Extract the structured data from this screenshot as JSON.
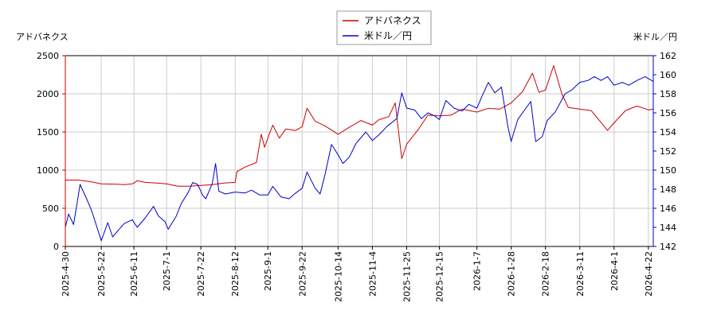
{
  "chart_data": {
    "type": "line",
    "title": "",
    "grid": true,
    "legend_position": "top-center",
    "xlabel": "",
    "x_tick_labels": [
      "2025-4-30",
      "2025-5-22",
      "2025-6-11",
      "2025-7-1",
      "2025-7-22",
      "2025-8-12",
      "2025-9-1",
      "2025-9-22",
      "2025-10-14",
      "2025-11-4",
      "2025-11-25",
      "2025-12-15",
      "2026-1-7",
      "2026-1-28",
      "2026-2-18",
      "2026-3-11",
      "2026-4-1",
      "2026-4-22"
    ],
    "xlim": [
      "2025-04-30",
      "2026-04-25"
    ],
    "y_left": {
      "label": "アドバネクス",
      "ylim": [
        0,
        2500
      ],
      "ticks": [
        "0",
        "500",
        "1000",
        "1500",
        "2000",
        "2500"
      ]
    },
    "y_right": {
      "label": "米ドル／円",
      "ylim": [
        142,
        162
      ],
      "ticks": [
        "142",
        "144",
        "146",
        "148",
        "150",
        "152",
        "154",
        "156",
        "158",
        "160",
        "162"
      ]
    },
    "series": [
      {
        "name": "アドバネクス",
        "axis": "left",
        "color": "#cc0000",
        "points": [
          [
            "2025-04-30",
            870
          ],
          [
            "2025-05-08",
            870
          ],
          [
            "2025-05-15",
            850
          ],
          [
            "2025-05-22",
            820
          ],
          [
            "2025-06-01",
            815
          ],
          [
            "2025-06-05",
            810
          ],
          [
            "2025-06-10",
            820
          ],
          [
            "2025-06-13",
            860
          ],
          [
            "2025-06-18",
            840
          ],
          [
            "2025-06-25",
            830
          ],
          [
            "2025-07-01",
            820
          ],
          [
            "2025-07-08",
            790
          ],
          [
            "2025-07-15",
            790
          ],
          [
            "2025-07-22",
            800
          ],
          [
            "2025-07-29",
            810
          ],
          [
            "2025-08-05",
            830
          ],
          [
            "2025-08-12",
            840
          ],
          [
            "2025-08-13",
            980
          ],
          [
            "2025-08-18",
            1040
          ],
          [
            "2025-08-25",
            1100
          ],
          [
            "2025-08-28",
            1470
          ],
          [
            "2025-08-30",
            1300
          ],
          [
            "2025-09-02",
            1480
          ],
          [
            "2025-09-04",
            1590
          ],
          [
            "2025-09-08",
            1420
          ],
          [
            "2025-09-12",
            1540
          ],
          [
            "2025-09-18",
            1520
          ],
          [
            "2025-09-22",
            1570
          ],
          [
            "2025-09-25",
            1810
          ],
          [
            "2025-09-30",
            1640
          ],
          [
            "2025-10-06",
            1580
          ],
          [
            "2025-10-14",
            1470
          ],
          [
            "2025-10-20",
            1550
          ],
          [
            "2025-10-28",
            1650
          ],
          [
            "2025-11-04",
            1590
          ],
          [
            "2025-11-08",
            1660
          ],
          [
            "2025-11-14",
            1700
          ],
          [
            "2025-11-18",
            1880
          ],
          [
            "2025-11-22",
            1150
          ],
          [
            "2025-11-25",
            1340
          ],
          [
            "2025-12-02",
            1530
          ],
          [
            "2025-12-08",
            1720
          ],
          [
            "2025-12-15",
            1710
          ],
          [
            "2025-12-22",
            1720
          ],
          [
            "2025-12-29",
            1800
          ],
          [
            "2026-01-07",
            1760
          ],
          [
            "2026-01-14",
            1810
          ],
          [
            "2026-01-21",
            1800
          ],
          [
            "2026-01-28",
            1880
          ],
          [
            "2026-02-04",
            2030
          ],
          [
            "2026-02-10",
            2270
          ],
          [
            "2026-02-14",
            2020
          ],
          [
            "2026-02-18",
            2050
          ],
          [
            "2026-02-23",
            2370
          ],
          [
            "2026-02-28",
            2000
          ],
          [
            "2026-03-04",
            1820
          ],
          [
            "2026-03-11",
            1800
          ],
          [
            "2026-03-18",
            1780
          ],
          [
            "2026-03-25",
            1600
          ],
          [
            "2026-03-28",
            1520
          ],
          [
            "2026-04-01",
            1620
          ],
          [
            "2026-04-08",
            1780
          ],
          [
            "2026-04-15",
            1840
          ],
          [
            "2026-04-22",
            1790
          ],
          [
            "2026-04-25",
            1800
          ]
        ]
      },
      {
        "name": "米ドル／円",
        "axis": "right",
        "color": "#0000cc",
        "points": [
          [
            "2025-04-30",
            144.0
          ],
          [
            "2025-05-02",
            145.4
          ],
          [
            "2025-05-05",
            144.3
          ],
          [
            "2025-05-07",
            146.3
          ],
          [
            "2025-05-09",
            148.5
          ],
          [
            "2025-05-13",
            147.0
          ],
          [
            "2025-05-16",
            145.8
          ],
          [
            "2025-05-19",
            144.2
          ],
          [
            "2025-05-22",
            142.6
          ],
          [
            "2025-05-26",
            144.5
          ],
          [
            "2025-05-29",
            143.0
          ],
          [
            "2025-06-02",
            143.8
          ],
          [
            "2025-06-05",
            144.4
          ],
          [
            "2025-06-10",
            144.8
          ],
          [
            "2025-06-13",
            144.0
          ],
          [
            "2025-06-18",
            145.0
          ],
          [
            "2025-06-23",
            146.2
          ],
          [
            "2025-06-26",
            145.2
          ],
          [
            "2025-06-30",
            144.6
          ],
          [
            "2025-07-02",
            143.8
          ],
          [
            "2025-07-07",
            145.2
          ],
          [
            "2025-07-10",
            146.5
          ],
          [
            "2025-07-14",
            147.6
          ],
          [
            "2025-07-17",
            148.7
          ],
          [
            "2025-07-20",
            148.5
          ],
          [
            "2025-07-23",
            147.4
          ],
          [
            "2025-07-25",
            147.0
          ],
          [
            "2025-07-29",
            148.6
          ],
          [
            "2025-07-31",
            150.7
          ],
          [
            "2025-08-02",
            147.8
          ],
          [
            "2025-08-06",
            147.5
          ],
          [
            "2025-08-12",
            147.7
          ],
          [
            "2025-08-18",
            147.6
          ],
          [
            "2025-08-22",
            147.9
          ],
          [
            "2025-08-27",
            147.4
          ],
          [
            "2025-09-01",
            147.4
          ],
          [
            "2025-09-04",
            148.3
          ],
          [
            "2025-09-09",
            147.2
          ],
          [
            "2025-09-14",
            147.0
          ],
          [
            "2025-09-18",
            147.6
          ],
          [
            "2025-09-22",
            148.1
          ],
          [
            "2025-09-25",
            149.8
          ],
          [
            "2025-09-30",
            148.1
          ],
          [
            "2025-10-03",
            147.5
          ],
          [
            "2025-10-06",
            149.5
          ],
          [
            "2025-10-10",
            152.7
          ],
          [
            "2025-10-14",
            151.6
          ],
          [
            "2025-10-17",
            150.7
          ],
          [
            "2025-10-21",
            151.4
          ],
          [
            "2025-10-25",
            152.8
          ],
          [
            "2025-10-31",
            154.0
          ],
          [
            "2025-11-04",
            153.1
          ],
          [
            "2025-11-08",
            153.7
          ],
          [
            "2025-11-13",
            154.6
          ],
          [
            "2025-11-19",
            155.4
          ],
          [
            "2025-11-22",
            158.1
          ],
          [
            "2025-11-25",
            156.5
          ],
          [
            "2025-11-30",
            156.3
          ],
          [
            "2025-12-04",
            155.4
          ],
          [
            "2025-12-08",
            156.0
          ],
          [
            "2025-12-12",
            155.7
          ],
          [
            "2025-12-15",
            155.3
          ],
          [
            "2025-12-19",
            157.3
          ],
          [
            "2025-12-24",
            156.5
          ],
          [
            "2025-12-29",
            156.2
          ],
          [
            "2026-01-02",
            156.9
          ],
          [
            "2026-01-07",
            156.5
          ],
          [
            "2026-01-10",
            157.7
          ],
          [
            "2026-01-14",
            159.2
          ],
          [
            "2026-01-18",
            158.1
          ],
          [
            "2026-01-22",
            158.7
          ],
          [
            "2026-01-26",
            154.6
          ],
          [
            "2026-01-28",
            153.0
          ],
          [
            "2026-02-01",
            155.3
          ],
          [
            "2026-02-06",
            156.5
          ],
          [
            "2026-02-09",
            157.2
          ],
          [
            "2026-02-12",
            153.0
          ],
          [
            "2026-02-16",
            153.5
          ],
          [
            "2026-02-19",
            155.2
          ],
          [
            "2026-02-24",
            156.1
          ],
          [
            "2026-03-02",
            158.0
          ],
          [
            "2026-03-06",
            158.4
          ],
          [
            "2026-03-11",
            159.2
          ],
          [
            "2026-03-16",
            159.4
          ],
          [
            "2026-03-20",
            159.8
          ],
          [
            "2026-03-24",
            159.4
          ],
          [
            "2026-03-28",
            159.8
          ],
          [
            "2026-04-01",
            158.9
          ],
          [
            "2026-04-06",
            159.2
          ],
          [
            "2026-04-10",
            158.9
          ],
          [
            "2026-04-15",
            159.4
          ],
          [
            "2026-04-20",
            159.8
          ],
          [
            "2026-04-25",
            159.3
          ]
        ]
      }
    ]
  }
}
